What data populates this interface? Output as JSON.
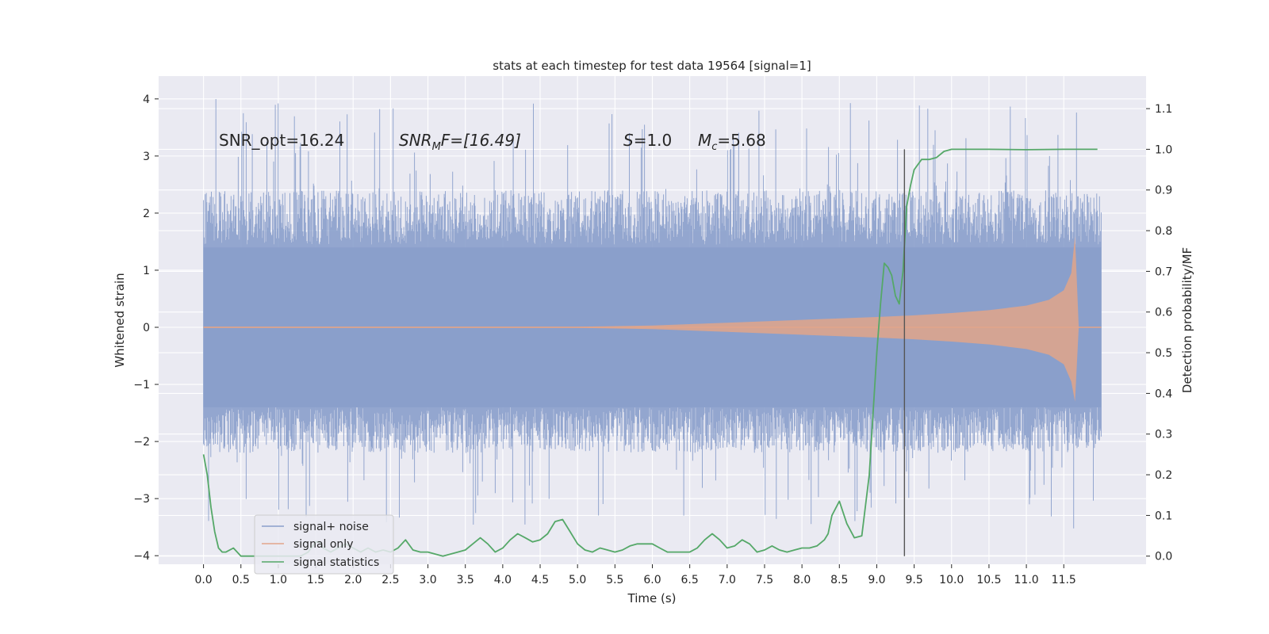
{
  "chart_data": {
    "type": "line",
    "title": "stats at each timestep for test data 19564 [signal=1]",
    "xlabel": "Time (s)",
    "ylabel": "Whitened strain",
    "y2label": "Detection probability/MF",
    "xlim": [
      -0.6,
      12.6
    ],
    "ylim": [
      -4.15,
      4.4
    ],
    "y2lim": [
      -0.02,
      1.18
    ],
    "x_ticks": [
      "0.0",
      "0.5",
      "1.0",
      "1.5",
      "2.0",
      "2.5",
      "3.0",
      "3.5",
      "4.0",
      "4.5",
      "5.0",
      "5.5",
      "6.0",
      "6.5",
      "7.0",
      "7.5",
      "8.0",
      "8.5",
      "9.0",
      "9.5",
      "10.0",
      "10.5",
      "11.0",
      "11.5"
    ],
    "y_ticks": [
      "4",
      "3",
      "2",
      "1",
      "0",
      "−1",
      "−2",
      "−3",
      "−4"
    ],
    "y2_ticks": [
      "1.1",
      "1.0",
      "0.9",
      "0.8",
      "0.7",
      "0.6",
      "0.5",
      "0.4",
      "0.3",
      "0.2",
      "0.1",
      "0.0"
    ],
    "grid": true,
    "legend_position": "lower-left",
    "annotations": {
      "snr_opt": "SNR_opt=16.24",
      "snr_mf_main": "SNR",
      "snr_mf_sub": "M",
      "snr_mf_rest": "F=[16.49]",
      "s_italic": "S",
      "s_value": "=1.0",
      "mc_italic": "M",
      "mc_sub": "c",
      "mc_value": "=5.68"
    },
    "vertical_marker_x": 9.37,
    "series": [
      {
        "name": "signal+ noise",
        "color": "#8a9fcb",
        "x_range": [
          0.0,
          12.0
        ],
        "envelope_approx": {
          "typical_max": 2.4,
          "typical_min": -2.2,
          "peak_max": 4.1,
          "peak_min": -3.75
        }
      },
      {
        "name": "signal only",
        "color": "#e1a58a",
        "envelope_x": [
          0.0,
          5.0,
          6.0,
          7.0,
          8.0,
          9.0,
          9.5,
          10.0,
          10.5,
          11.0,
          11.3,
          11.5,
          11.6,
          11.65,
          11.7,
          12.0
        ],
        "envelope_y": [
          0.01,
          0.01,
          0.03,
          0.08,
          0.13,
          0.18,
          0.21,
          0.25,
          0.3,
          0.38,
          0.48,
          0.65,
          0.95,
          1.6,
          0.0,
          0.0
        ]
      },
      {
        "name": "signal statistics",
        "color": "#55a868",
        "x": [
          0.0,
          0.05,
          0.1,
          0.15,
          0.2,
          0.25,
          0.3,
          0.4,
          0.5,
          0.6,
          0.8,
          1.0,
          1.2,
          1.3,
          1.4,
          1.5,
          1.55,
          1.6,
          1.7,
          1.8,
          1.9,
          2.0,
          2.1,
          2.2,
          2.3,
          2.4,
          2.5,
          2.6,
          2.7,
          2.8,
          2.9,
          3.0,
          3.2,
          3.4,
          3.5,
          3.6,
          3.7,
          3.8,
          3.9,
          4.0,
          4.1,
          4.2,
          4.3,
          4.4,
          4.5,
          4.6,
          4.7,
          4.8,
          4.9,
          5.0,
          5.1,
          5.2,
          5.3,
          5.4,
          5.5,
          5.6,
          5.7,
          5.8,
          6.0,
          6.1,
          6.2,
          6.3,
          6.5,
          6.6,
          6.7,
          6.8,
          6.9,
          7.0,
          7.1,
          7.2,
          7.3,
          7.4,
          7.5,
          7.6,
          7.7,
          7.8,
          7.9,
          8.0,
          8.1,
          8.2,
          8.3,
          8.35,
          8.4,
          8.5,
          8.6,
          8.7,
          8.8,
          8.9,
          9.0,
          9.05,
          9.1,
          9.15,
          9.2,
          9.25,
          9.3,
          9.35,
          9.4,
          9.45,
          9.5,
          9.6,
          9.7,
          9.8,
          9.9,
          10.0,
          10.5,
          11.0,
          11.5,
          11.95
        ],
        "y": [
          0.25,
          0.2,
          0.12,
          0.06,
          0.02,
          0.01,
          0.01,
          0.02,
          0.0,
          0.0,
          0.0,
          0.0,
          0.0,
          0.0,
          0.01,
          0.035,
          0.035,
          0.02,
          0.01,
          0.02,
          0.03,
          0.02,
          0.01,
          0.02,
          0.01,
          0.015,
          0.01,
          0.02,
          0.04,
          0.015,
          0.01,
          0.01,
          0.0,
          0.01,
          0.015,
          0.03,
          0.045,
          0.03,
          0.01,
          0.02,
          0.04,
          0.055,
          0.045,
          0.035,
          0.04,
          0.055,
          0.085,
          0.09,
          0.06,
          0.03,
          0.015,
          0.01,
          0.02,
          0.015,
          0.01,
          0.015,
          0.025,
          0.03,
          0.03,
          0.02,
          0.01,
          0.01,
          0.01,
          0.02,
          0.04,
          0.055,
          0.04,
          0.02,
          0.025,
          0.04,
          0.03,
          0.01,
          0.015,
          0.025,
          0.015,
          0.01,
          0.015,
          0.02,
          0.02,
          0.025,
          0.04,
          0.055,
          0.1,
          0.135,
          0.08,
          0.045,
          0.05,
          0.2,
          0.5,
          0.62,
          0.72,
          0.71,
          0.69,
          0.64,
          0.62,
          0.7,
          0.86,
          0.91,
          0.95,
          0.975,
          0.975,
          0.98,
          0.995,
          1.0,
          1.0,
          0.999,
          1.0,
          1.0
        ]
      }
    ]
  }
}
